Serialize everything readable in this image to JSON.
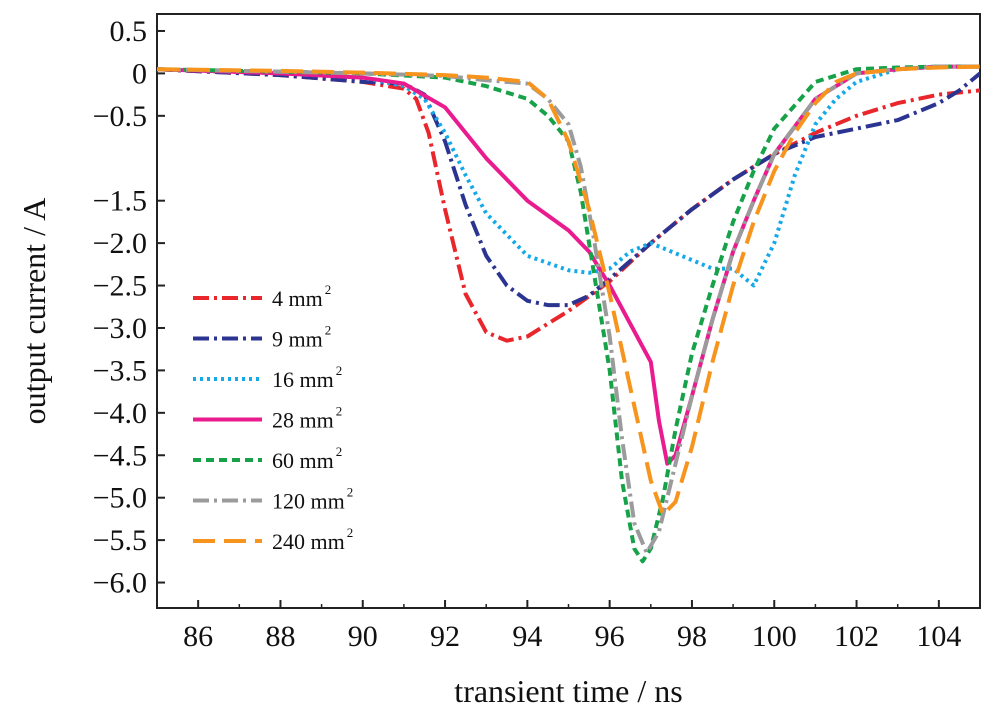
{
  "chart_data": {
    "type": "line",
    "xlabel": "transient time / ns",
    "ylabel": "output current / A",
    "xlim": [
      85,
      105
    ],
    "ylim": [
      -6.3,
      0.7
    ],
    "xticks": [
      86,
      88,
      90,
      92,
      94,
      96,
      98,
      100,
      102,
      104
    ],
    "xtick_labels": [
      "86",
      "88",
      "90",
      "92",
      "94",
      "96",
      "98",
      "100",
      "102",
      "104"
    ],
    "yticks": [
      0.5,
      0,
      -0.5,
      -1.5,
      -2.0,
      -2.5,
      -3.0,
      -3.5,
      -4.0,
      -4.5,
      -5.0,
      -5.5,
      -6.0
    ],
    "ytick_labels": [
      "0.5",
      "0",
      "−0.5",
      "−1.5",
      "−2.0",
      "−2.5",
      "−3.0",
      "−3.5",
      "−4.0",
      "−4.5",
      "−5.0",
      "−5.5",
      "−6.0"
    ],
    "grid": false,
    "legend_position": "bottom-left",
    "series": [
      {
        "name": "4 mm",
        "sup": "2",
        "color": "#e8262b",
        "dash": "16,5,3,5",
        "x": [
          85,
          88,
          90,
          91,
          91.3,
          91.6,
          92,
          92.5,
          93,
          93.5,
          94,
          94.5,
          95,
          96,
          97,
          98,
          99,
          100,
          101,
          102,
          103,
          104,
          105
        ],
        "y": [
          0.05,
          -0.02,
          -0.1,
          -0.18,
          -0.3,
          -0.7,
          -1.6,
          -2.6,
          -3.05,
          -3.15,
          -3.1,
          -2.95,
          -2.8,
          -2.45,
          -2.0,
          -1.6,
          -1.25,
          -0.95,
          -0.7,
          -0.5,
          -0.35,
          -0.25,
          -0.2
        ]
      },
      {
        "name": "9 mm",
        "sup": "2",
        "color": "#2b3591",
        "dash": "16,5,3,5",
        "x": [
          85,
          88,
          90,
          91,
          91.5,
          92,
          92.5,
          93,
          93.5,
          94,
          94.5,
          95,
          95.5,
          96,
          97,
          98,
          99,
          100,
          101,
          102,
          103,
          104,
          104.5,
          105
        ],
        "y": [
          0.05,
          -0.02,
          -0.1,
          -0.12,
          -0.25,
          -0.8,
          -1.55,
          -2.15,
          -2.5,
          -2.68,
          -2.73,
          -2.73,
          -2.62,
          -2.42,
          -2.0,
          -1.6,
          -1.25,
          -0.95,
          -0.75,
          -0.65,
          -0.55,
          -0.35,
          -0.2,
          0.0
        ]
      },
      {
        "name": "16 mm",
        "sup": "2",
        "color": "#14a9e8",
        "dash": "3,4",
        "x": [
          85,
          88,
          90,
          91,
          91.5,
          92,
          92.5,
          93,
          94,
          95,
          95.5,
          96,
          96.5,
          97,
          97.5,
          98,
          98.5,
          99,
          99.5,
          100,
          100.5,
          101,
          101.5,
          102,
          103,
          104,
          105
        ],
        "y": [
          0.05,
          0.0,
          -0.05,
          -0.15,
          -0.3,
          -0.7,
          -1.2,
          -1.65,
          -2.15,
          -2.32,
          -2.35,
          -2.3,
          -2.1,
          -2.0,
          -2.1,
          -2.2,
          -2.3,
          -2.3,
          -2.5,
          -2.0,
          -1.2,
          -0.6,
          -0.3,
          -0.1,
          0.05,
          0.08,
          0.08
        ]
      },
      {
        "name": "28 mm",
        "sup": "2",
        "color": "#ea1b8e",
        "dash": "",
        "x": [
          85,
          88,
          90,
          91,
          92,
          93,
          94,
          95,
          95.5,
          96,
          96.5,
          97,
          97.2,
          97.4,
          97.6,
          98,
          98.5,
          99,
          99.5,
          100,
          101,
          102,
          103,
          104,
          105
        ],
        "y": [
          0.05,
          0.0,
          -0.05,
          -0.12,
          -0.4,
          -1.0,
          -1.5,
          -1.85,
          -2.1,
          -2.5,
          -2.95,
          -3.4,
          -4.1,
          -4.6,
          -4.5,
          -3.8,
          -2.9,
          -2.1,
          -1.5,
          -0.95,
          -0.3,
          0.0,
          0.05,
          0.08,
          0.08
        ]
      },
      {
        "name": "60 mm",
        "sup": "2",
        "color": "#17a24a",
        "dash": "8,5",
        "x": [
          85,
          88,
          90,
          92,
          93,
          94,
          94.5,
          95,
          95.3,
          95.6,
          96,
          96.3,
          96.6,
          96.8,
          97,
          97.3,
          97.6,
          98,
          98.5,
          99,
          99.5,
          100,
          101,
          102,
          103,
          104,
          105
        ],
        "y": [
          0.05,
          0.02,
          0.0,
          -0.05,
          -0.15,
          -0.3,
          -0.5,
          -0.8,
          -1.4,
          -2.3,
          -3.5,
          -4.8,
          -5.6,
          -5.75,
          -5.6,
          -5.0,
          -4.2,
          -3.3,
          -2.5,
          -1.75,
          -1.15,
          -0.65,
          -0.1,
          0.05,
          0.07,
          0.08,
          0.08
        ]
      },
      {
        "name": "120 mm",
        "sup": "2",
        "color": "#9b9b9b",
        "dash": "16,5,3,5",
        "x": [
          85,
          88,
          90,
          92,
          93,
          94,
          94.5,
          95,
          95.3,
          95.6,
          96,
          96.3,
          96.6,
          96.9,
          97.2,
          97.5,
          98,
          98.5,
          99,
          99.5,
          100,
          101,
          102,
          103,
          104,
          105
        ],
        "y": [
          0.05,
          0.02,
          0.0,
          -0.03,
          -0.08,
          -0.12,
          -0.3,
          -0.6,
          -1.1,
          -1.9,
          -3.1,
          -4.3,
          -5.3,
          -5.65,
          -5.4,
          -4.8,
          -3.8,
          -2.9,
          -2.1,
          -1.5,
          -0.95,
          -0.3,
          0.0,
          0.05,
          0.08,
          0.08
        ]
      },
      {
        "name": "240 mm",
        "sup": "2",
        "color": "#f7941d",
        "dash": "22,9",
        "x": [
          85,
          88,
          90,
          92,
          93,
          94,
          94.5,
          95,
          95.5,
          96,
          96.5,
          97,
          97.3,
          97.6,
          98,
          98.5,
          99,
          99.5,
          100,
          100.5,
          101,
          101.5,
          102,
          103,
          104,
          105
        ],
        "y": [
          0.05,
          0.03,
          0.01,
          -0.02,
          -0.05,
          -0.1,
          -0.3,
          -0.8,
          -1.6,
          -2.6,
          -3.7,
          -4.8,
          -5.2,
          -5.05,
          -4.4,
          -3.4,
          -2.5,
          -1.75,
          -1.15,
          -0.7,
          -0.35,
          -0.1,
          0.0,
          0.05,
          0.07,
          0.08
        ]
      }
    ]
  }
}
